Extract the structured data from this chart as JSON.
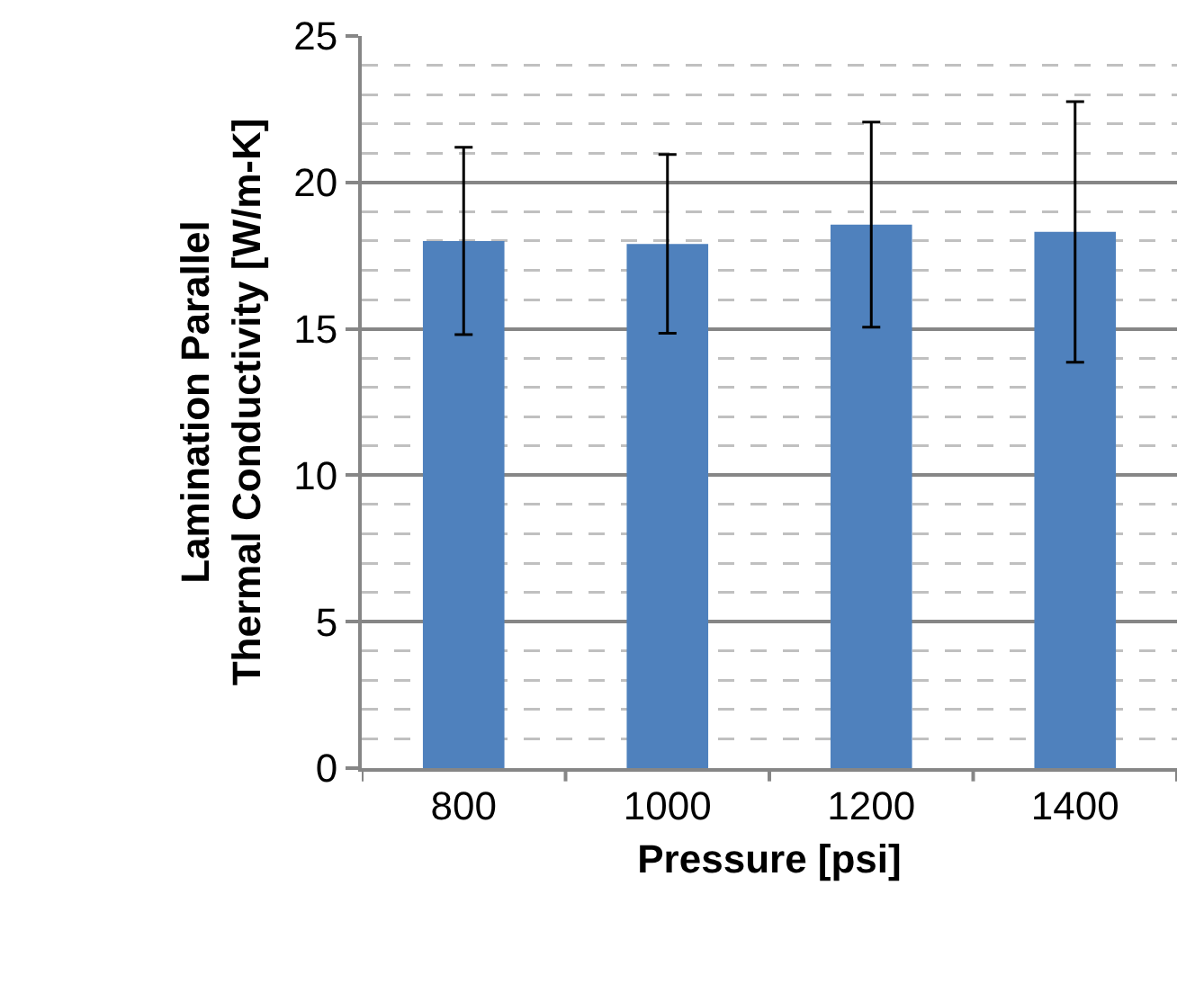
{
  "chart_data": {
    "type": "bar",
    "xlabel": "Pressure [psi]",
    "ylabel": "Lamination Parallel Thermal Conductivity [W/m-K]",
    "categories": [
      "800",
      "1000",
      "1200",
      "1400"
    ],
    "values": [
      18.0,
      17.9,
      18.56,
      18.31
    ],
    "errors": [
      3.2,
      3.05,
      3.5,
      4.45
    ],
    "color": "#4f81bd",
    "ylim": [
      0,
      25
    ],
    "yticks": [
      0,
      5,
      10,
      15,
      20,
      25
    ],
    "grid": "y"
  }
}
